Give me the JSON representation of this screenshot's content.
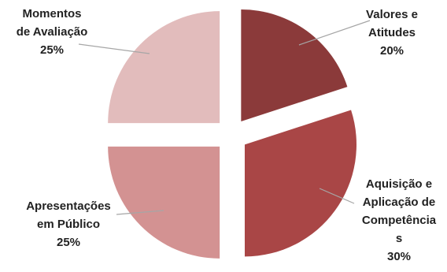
{
  "chart_data": {
    "type": "pie",
    "exploded": true,
    "slices": [
      {
        "name": "Valores e Atitudes",
        "label_lines": [
          "Valores e",
          "Atitudes"
        ],
        "pct_label": "20%",
        "value": 20,
        "color": "#8b3a3a"
      },
      {
        "name": "Aquisição e Aplicação de Competências",
        "label_lines": [
          "Aquisição e",
          "Aplicação de",
          "Competência",
          "s"
        ],
        "pct_label": "30%",
        "value": 30,
        "color": "#a94646"
      },
      {
        "name": "Apresentações em Público",
        "label_lines": [
          "Apresentações",
          "em Público"
        ],
        "pct_label": "25%",
        "value": 25,
        "color": "#d39292"
      },
      {
        "name": "Momentos de Avaliação",
        "label_lines": [
          "Momentos",
          "de Avaliação"
        ],
        "pct_label": "25%",
        "value": 25,
        "color": "#e2bcbc"
      }
    ]
  }
}
